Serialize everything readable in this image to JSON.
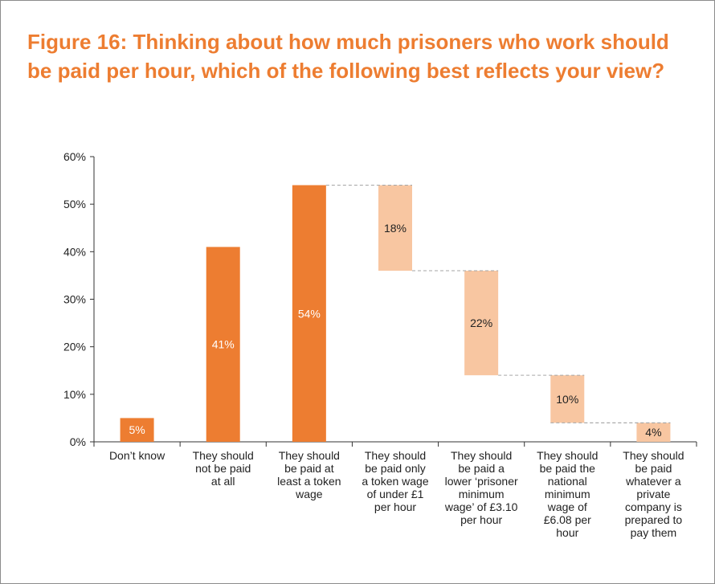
{
  "title": "Figure 16: Thinking about how much prisoners who work should be paid per hour, which of the following best reflects your view?",
  "colors": {
    "primary": "#ed7d31",
    "light": "#f8c6a1",
    "title": "#ed7d31",
    "dash": "#a6a6a6"
  },
  "chart_data": {
    "type": "bar",
    "subtype": "waterfall",
    "ylim": [
      0,
      60
    ],
    "yticks": [
      "0%",
      "10%",
      "20%",
      "30%",
      "40%",
      "50%",
      "60%"
    ],
    "xlabel": "",
    "ylabel": "",
    "categories": [
      "Don’t know",
      "They should not be paid at all",
      "They should be paid at least a token wage",
      "They should be paid only a token wage of under £1 per hour",
      "They should be paid a lower ‘prisoner minimum wage’ of £3.10 per hour",
      "They should be paid the national minimum wage of £6.08 per hour",
      "They should be paid whatever a private company is prepared to pay them"
    ],
    "category_lines": [
      [
        "Don’t know"
      ],
      [
        "They should",
        "not be paid",
        "at all"
      ],
      [
        "They should",
        "be paid at",
        "least a token",
        "wage"
      ],
      [
        "They should",
        "be paid only",
        "a token wage",
        "of under £1",
        "per hour"
      ],
      [
        "They should",
        "be paid a",
        "lower ‘prisoner",
        "minimum",
        "wage’ of £3.10",
        "per hour"
      ],
      [
        "They should",
        "be paid the",
        "national",
        "minimum",
        "wage of",
        "£6.08 per",
        "hour"
      ],
      [
        "They should",
        "be paid",
        "whatever a",
        "private",
        "company is",
        "prepared to",
        "pay them"
      ]
    ],
    "values": [
      5,
      41,
      54,
      18,
      22,
      10,
      4
    ],
    "bases": [
      0,
      0,
      0,
      36,
      14,
      4,
      0
    ],
    "data_labels": [
      "5%",
      "41%",
      "54%",
      "18%",
      "22%",
      "10%",
      "4%"
    ],
    "bar_styles": [
      "primary",
      "primary",
      "primary",
      "light",
      "light",
      "light",
      "light"
    ]
  }
}
